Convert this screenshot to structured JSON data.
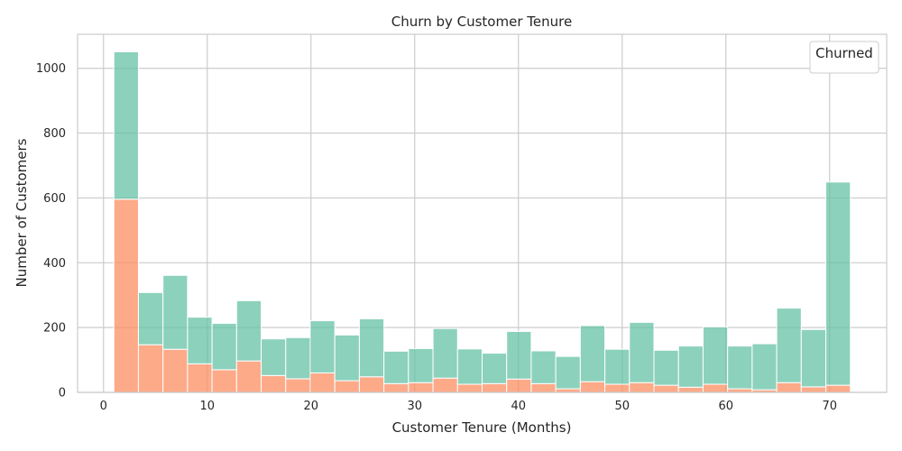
{
  "chart_data": {
    "type": "bar",
    "stacked": true,
    "title": "Churn by Customer Tenure",
    "xlabel": "Customer Tenure (Months)",
    "ylabel": "Number of Customers",
    "xlim": [
      -2.5,
      75.5
    ],
    "ylim": [
      0,
      1105
    ],
    "xticks": [
      0,
      10,
      20,
      30,
      40,
      50,
      60,
      70
    ],
    "yticks": [
      0,
      200,
      400,
      600,
      800,
      1000
    ],
    "grid": true,
    "legend": {
      "title": "Churned",
      "placement": "top-right"
    },
    "bin_start": 1,
    "bin_width": 2.366667,
    "series": [
      {
        "color": "#fc8d62",
        "values": [
          596,
          147,
          133,
          88,
          70,
          97,
          52,
          42,
          60,
          36,
          48,
          27,
          30,
          44,
          25,
          27,
          41,
          27,
          11,
          33,
          25,
          30,
          22,
          16,
          25,
          11,
          8,
          30,
          17,
          22
        ]
      },
      {
        "color": "#66c2a5",
        "values": [
          455,
          161,
          228,
          144,
          143,
          186,
          113,
          127,
          161,
          141,
          179,
          100,
          105,
          153,
          109,
          94,
          147,
          101,
          100,
          173,
          108,
          186,
          108,
          127,
          177,
          132,
          142,
          230,
          177,
          627
        ]
      }
    ]
  }
}
